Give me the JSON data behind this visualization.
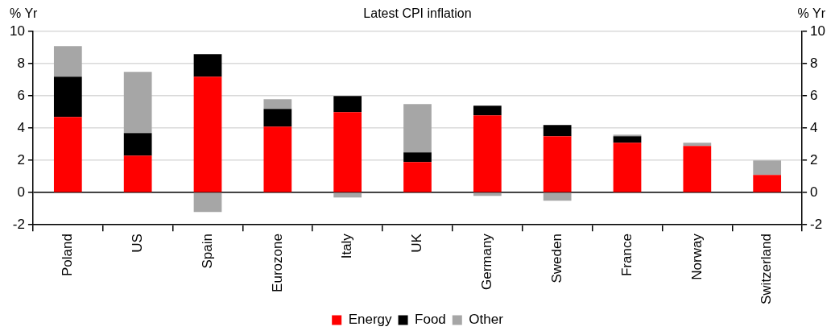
{
  "chart_data": {
    "type": "bar",
    "title": "Latest CPI inflation",
    "ylabel": "% Yr",
    "y2label": "% Yr",
    "stacked": true,
    "categories": [
      "Poland",
      "US",
      "Spain",
      "Eurozone",
      "Italy",
      "UK",
      "Germany",
      "Sweden",
      "France",
      "Norway",
      "Switzerland"
    ],
    "series": [
      {
        "name": "Energy",
        "color": "#ff0000",
        "values": [
          4.7,
          2.3,
          7.2,
          4.1,
          5.0,
          1.9,
          4.8,
          3.5,
          3.1,
          2.9,
          1.1
        ]
      },
      {
        "name": "Food",
        "color": "#000000",
        "values": [
          2.5,
          1.4,
          1.4,
          1.1,
          1.0,
          0.6,
          0.6,
          0.7,
          0.4,
          0,
          0
        ]
      },
      {
        "name": "Other",
        "color": "#a6a6a6",
        "values": [
          1.9,
          3.8,
          -1.2,
          0.6,
          -0.3,
          3.0,
          -0.2,
          -0.5,
          0.1,
          0.2,
          0.9
        ]
      }
    ],
    "ylim": [
      -2,
      10
    ],
    "yticks": [
      -2,
      0,
      2,
      4,
      6,
      8,
      10
    ],
    "y2lim": [
      -2,
      10
    ],
    "y2ticks": [
      -2,
      0,
      2,
      4,
      6,
      8,
      10
    ],
    "grid": "y",
    "legend": "bottom"
  }
}
